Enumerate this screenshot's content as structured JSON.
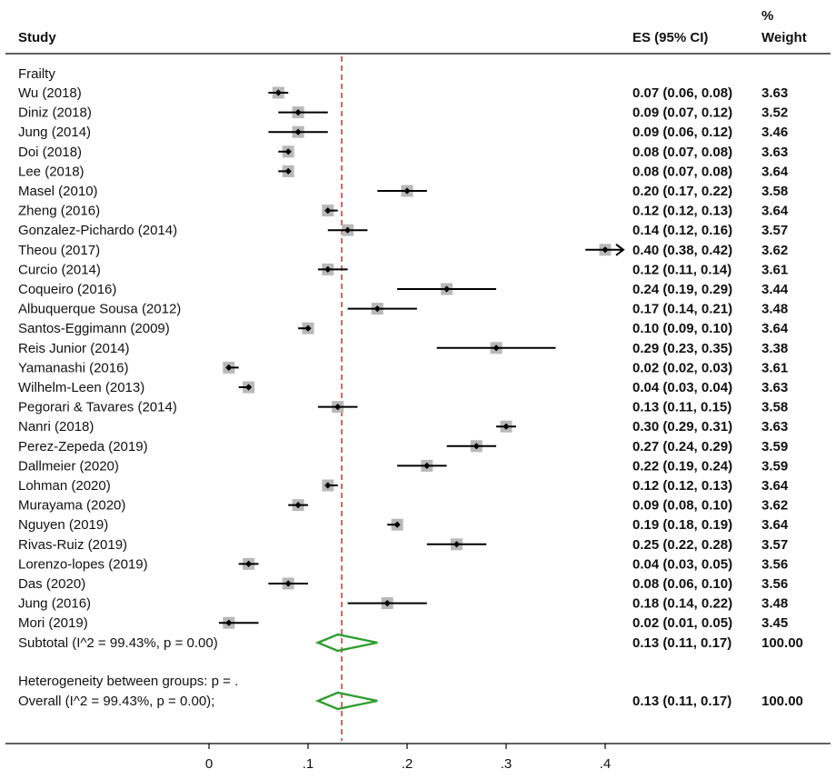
{
  "chart_data": {
    "type": "forest",
    "headers": {
      "study": "Study",
      "es": "ES (95% CI)",
      "weight_pct": "%",
      "weight": "Weight"
    },
    "group_label": "Frailty",
    "studies": [
      {
        "label": "Wu  (2018)",
        "es": 0.07,
        "lo": 0.06,
        "hi": 0.08,
        "ci_text": "0.07 (0.06, 0.08)",
        "weight": "3.63"
      },
      {
        "label": "Diniz  (2018)",
        "es": 0.09,
        "lo": 0.07,
        "hi": 0.12,
        "ci_text": "0.09 (0.07, 0.12)",
        "weight": "3.52"
      },
      {
        "label": "Jung  (2014)",
        "es": 0.09,
        "lo": 0.06,
        "hi": 0.12,
        "ci_text": "0.09 (0.06, 0.12)",
        "weight": "3.46"
      },
      {
        "label": "Doi (2018)",
        "es": 0.08,
        "lo": 0.07,
        "hi": 0.08,
        "ci_text": "0.08 (0.07, 0.08)",
        "weight": "3.63"
      },
      {
        "label": "Lee  (2018)",
        "es": 0.08,
        "lo": 0.07,
        "hi": 0.08,
        "ci_text": "0.08 (0.07, 0.08)",
        "weight": "3.64"
      },
      {
        "label": "Masel  (2010)",
        "es": 0.2,
        "lo": 0.17,
        "hi": 0.22,
        "ci_text": "0.20 (0.17, 0.22)",
        "weight": "3.58"
      },
      {
        "label": "Zheng  (2016)",
        "es": 0.12,
        "lo": 0.12,
        "hi": 0.13,
        "ci_text": "0.12 (0.12, 0.13)",
        "weight": "3.64"
      },
      {
        "label": "Gonzalez-Pichardo  (2014)",
        "es": 0.14,
        "lo": 0.12,
        "hi": 0.16,
        "ci_text": "0.14 (0.12, 0.16)",
        "weight": "3.57"
      },
      {
        "label": "Theou  (2017)",
        "es": 0.4,
        "lo": 0.38,
        "hi": 0.42,
        "ci_text": "0.40 (0.38, 0.42)",
        "weight": "3.62",
        "arrow": true
      },
      {
        "label": "Curcio  (2014)",
        "es": 0.12,
        "lo": 0.11,
        "hi": 0.14,
        "ci_text": "0.12 (0.11, 0.14)",
        "weight": "3.61"
      },
      {
        "label": "Coqueiro  (2016)",
        "es": 0.24,
        "lo": 0.19,
        "hi": 0.29,
        "ci_text": "0.24 (0.19, 0.29)",
        "weight": "3.44"
      },
      {
        "label": "Albuquerque Sousa  (2012)",
        "es": 0.17,
        "lo": 0.14,
        "hi": 0.21,
        "ci_text": "0.17 (0.14, 0.21)",
        "weight": "3.48"
      },
      {
        "label": "Santos-Eggimann  (2009)",
        "es": 0.1,
        "lo": 0.09,
        "hi": 0.1,
        "ci_text": "0.10 (0.09, 0.10)",
        "weight": "3.64"
      },
      {
        "label": "Reis Junior  (2014)",
        "es": 0.29,
        "lo": 0.23,
        "hi": 0.35,
        "ci_text": "0.29 (0.23, 0.35)",
        "weight": "3.38"
      },
      {
        "label": "Yamanashi  (2016)",
        "es": 0.02,
        "lo": 0.02,
        "hi": 0.03,
        "ci_text": "0.02 (0.02, 0.03)",
        "weight": "3.61"
      },
      {
        "label": "Wilhelm-Leen  (2013)",
        "es": 0.04,
        "lo": 0.03,
        "hi": 0.04,
        "ci_text": "0.04 (0.03, 0.04)",
        "weight": "3.63"
      },
      {
        "label": "Pegorari & Tavares  (2014)",
        "es": 0.13,
        "lo": 0.11,
        "hi": 0.15,
        "ci_text": "0.13 (0.11, 0.15)",
        "weight": "3.58"
      },
      {
        "label": "Nanri  (2018)",
        "es": 0.3,
        "lo": 0.29,
        "hi": 0.31,
        "ci_text": "0.30 (0.29, 0.31)",
        "weight": "3.63"
      },
      {
        "label": "Perez-Zepeda  (2019)",
        "es": 0.27,
        "lo": 0.24,
        "hi": 0.29,
        "ci_text": "0.27 (0.24, 0.29)",
        "weight": "3.59"
      },
      {
        "label": "Dallmeier  (2020)",
        "es": 0.22,
        "lo": 0.19,
        "hi": 0.24,
        "ci_text": "0.22 (0.19, 0.24)",
        "weight": "3.59"
      },
      {
        "label": "Lohman  (2020)",
        "es": 0.12,
        "lo": 0.12,
        "hi": 0.13,
        "ci_text": "0.12 (0.12, 0.13)",
        "weight": "3.64"
      },
      {
        "label": "Murayama  (2020)",
        "es": 0.09,
        "lo": 0.08,
        "hi": 0.1,
        "ci_text": "0.09 (0.08, 0.10)",
        "weight": "3.62"
      },
      {
        "label": "Nguyen  (2019)",
        "es": 0.19,
        "lo": 0.18,
        "hi": 0.19,
        "ci_text": "0.19 (0.18, 0.19)",
        "weight": "3.64"
      },
      {
        "label": "Rivas-Ruiz  (2019)",
        "es": 0.25,
        "lo": 0.22,
        "hi": 0.28,
        "ci_text": "0.25 (0.22, 0.28)",
        "weight": "3.57"
      },
      {
        "label": "Lorenzo-lopes  (2019)",
        "es": 0.04,
        "lo": 0.03,
        "hi": 0.05,
        "ci_text": "0.04 (0.03, 0.05)",
        "weight": "3.56"
      },
      {
        "label": "Das  (2020)",
        "es": 0.08,
        "lo": 0.06,
        "hi": 0.1,
        "ci_text": "0.08 (0.06, 0.10)",
        "weight": "3.56"
      },
      {
        "label": "Jung  (2016)",
        "es": 0.18,
        "lo": 0.14,
        "hi": 0.22,
        "ci_text": "0.18 (0.14, 0.22)",
        "weight": "3.48"
      },
      {
        "label": "Mori  (2019)",
        "es": 0.02,
        "lo": 0.01,
        "hi": 0.05,
        "ci_text": "0.02 (0.01, 0.05)",
        "weight": "3.45"
      }
    ],
    "subtotal": {
      "label": "Subtotal  (I^2 = 99.43%, p = 0.00)",
      "es": 0.13,
      "lo": 0.11,
      "hi": 0.17,
      "ci_text": "0.13 (0.11, 0.17)",
      "weight": "100.00"
    },
    "heterogeneity_note": "Heterogeneity between groups: p = .",
    "overall": {
      "label": "Overall  (I^2 = 99.43%, p = 0.00);",
      "es": 0.13,
      "lo": 0.11,
      "hi": 0.17,
      "ci_text": "0.13 (0.11, 0.17)",
      "weight": "100.00"
    },
    "reference_line": 0.134,
    "xlim": [
      0,
      0.4
    ],
    "x_ticks": [
      {
        "value": 0,
        "label": "0"
      },
      {
        "value": 0.1,
        "label": ".1"
      },
      {
        "value": 0.2,
        "label": ".2"
      },
      {
        "value": 0.3,
        "label": ".3"
      },
      {
        "value": 0.4,
        "label": ".4"
      }
    ],
    "colors": {
      "diamond": "#2e9d2e",
      "reference": "#c0392b",
      "box": "#b8b8b8",
      "point": "#000000",
      "line": "#000000"
    }
  }
}
